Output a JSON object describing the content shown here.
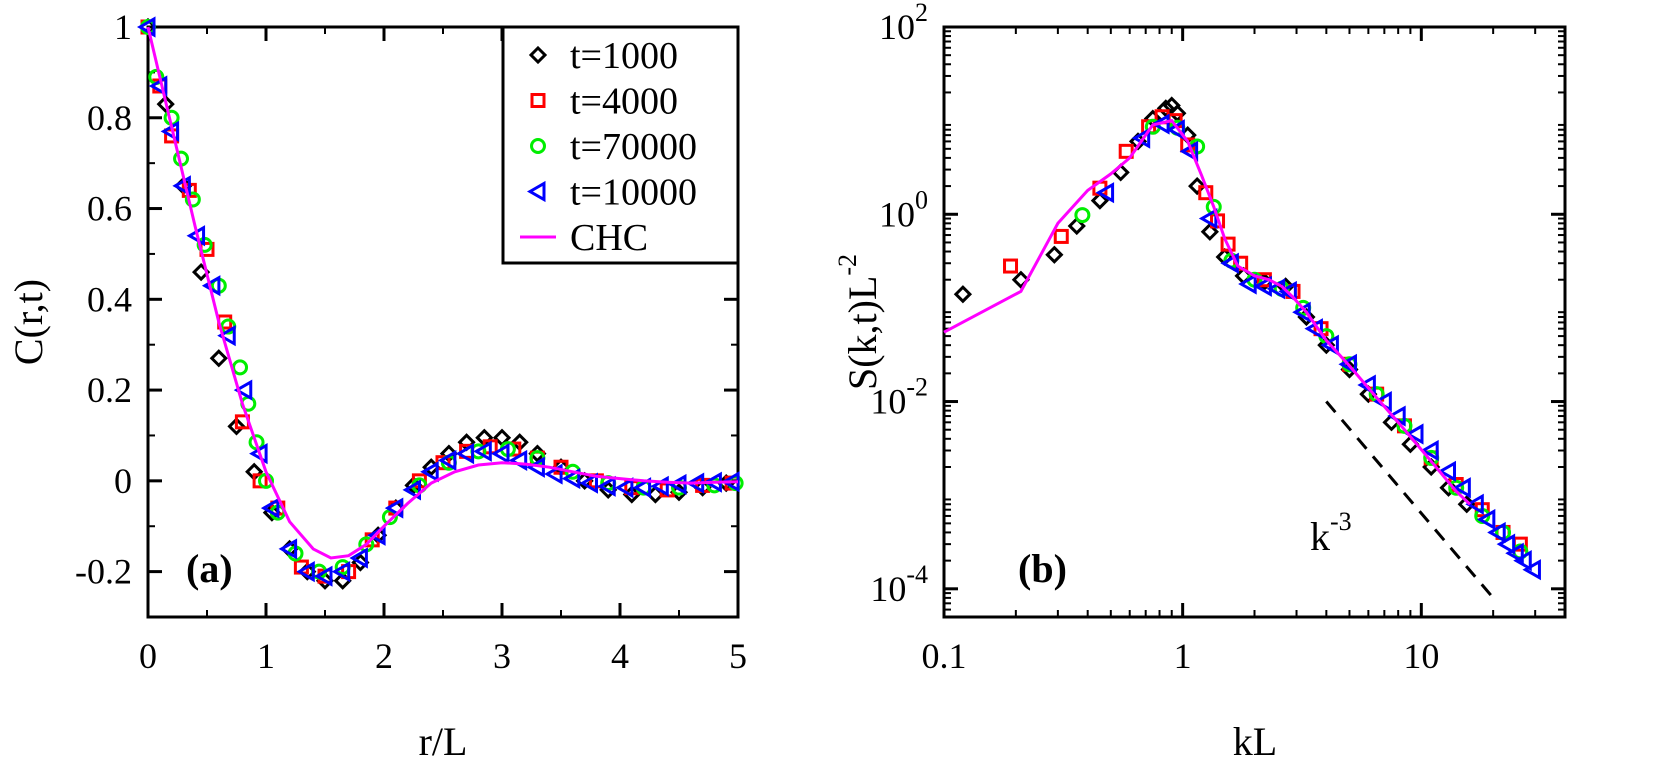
{
  "chart_data": [
    {
      "type": "scatter",
      "panel_label": "(a)",
      "xlabel": "r/L",
      "ylabel": "C(r,t)",
      "xlim": [
        0,
        5
      ],
      "ylim": [
        -0.3,
        1
      ],
      "xscale": "linear",
      "yscale": "linear",
      "xticks": [
        0,
        1,
        2,
        3,
        4,
        5
      ],
      "xtick_labels": [
        "0",
        "1",
        "2",
        "3",
        "4",
        "5"
      ],
      "yticks": [
        -0.2,
        0,
        0.2,
        0.4,
        0.6,
        0.8,
        1
      ],
      "ytick_labels": [
        "-0.2",
        "0",
        "0.2",
        "0.4",
        "0.6",
        "0.8",
        "1"
      ],
      "legend_position": "top-right",
      "series": [
        {
          "name": "t=1000",
          "marker": "diamond",
          "color": "#000000",
          "x": [
            0,
            0.15,
            0.3,
            0.45,
            0.6,
            0.75,
            0.9,
            1.05,
            1.2,
            1.35,
            1.5,
            1.65,
            1.8,
            1.95,
            2.1,
            2.25,
            2.4,
            2.55,
            2.7,
            2.85,
            3.0,
            3.15,
            3.3,
            3.5,
            3.7,
            3.9,
            4.1,
            4.3,
            4.5,
            4.7,
            4.9
          ],
          "y": [
            1.0,
            0.83,
            0.65,
            0.46,
            0.27,
            0.12,
            0.02,
            -0.07,
            -0.15,
            -0.2,
            -0.22,
            -0.22,
            -0.18,
            -0.12,
            -0.06,
            -0.01,
            0.03,
            0.06,
            0.085,
            0.095,
            0.095,
            0.085,
            0.06,
            0.03,
            0.0,
            -0.02,
            -0.03,
            -0.03,
            -0.025,
            -0.015,
            -0.005
          ]
        },
        {
          "name": "t=4000",
          "marker": "square",
          "color": "#ff0000",
          "x": [
            0,
            0.1,
            0.2,
            0.35,
            0.5,
            0.65,
            0.8,
            0.95,
            1.1,
            1.3,
            1.5,
            1.7,
            1.9,
            2.1,
            2.3,
            2.5,
            2.7,
            2.9,
            3.1,
            3.3,
            3.5,
            3.8,
            4.1,
            4.4,
            4.7,
            4.95
          ],
          "y": [
            1.0,
            0.87,
            0.76,
            0.64,
            0.51,
            0.35,
            0.13,
            0.0,
            -0.06,
            -0.19,
            -0.21,
            -0.2,
            -0.13,
            -0.06,
            0.0,
            0.04,
            0.065,
            0.075,
            0.07,
            0.05,
            0.03,
            0.0,
            -0.015,
            -0.02,
            -0.01,
            -0.005
          ]
        },
        {
          "name": "t=70000",
          "marker": "circle",
          "color": "#00ee00",
          "x": [
            0,
            0.07,
            0.2,
            0.28,
            0.38,
            0.48,
            0.6,
            0.68,
            0.78,
            0.85,
            0.92,
            1.0,
            1.1,
            1.25,
            1.45,
            1.65,
            1.85,
            2.05,
            2.3,
            2.55,
            2.8,
            3.05,
            3.3,
            3.6,
            3.9,
            4.2,
            4.5,
            4.8,
            4.98
          ],
          "y": [
            1.0,
            0.89,
            0.8,
            0.71,
            0.62,
            0.52,
            0.43,
            0.34,
            0.25,
            0.17,
            0.085,
            0.0,
            -0.07,
            -0.16,
            -0.2,
            -0.19,
            -0.14,
            -0.08,
            -0.01,
            0.04,
            0.065,
            0.07,
            0.05,
            0.02,
            -0.005,
            -0.015,
            -0.015,
            -0.01,
            -0.005
          ]
        },
        {
          "name": "t=10000",
          "marker": "triangle-left",
          "color": "#0000ff",
          "x": [
            0,
            0.1,
            0.2,
            0.3,
            0.42,
            0.55,
            0.68,
            0.82,
            0.95,
            1.05,
            1.2,
            1.35,
            1.5,
            1.65,
            1.8,
            1.95,
            2.1,
            2.25,
            2.4,
            2.55,
            2.7,
            2.85,
            3.0,
            3.15,
            3.3,
            3.45,
            3.6,
            3.75,
            3.9,
            4.05,
            4.2,
            4.35,
            4.5,
            4.65,
            4.8,
            4.95
          ],
          "y": [
            1.0,
            0.87,
            0.77,
            0.65,
            0.54,
            0.43,
            0.32,
            0.2,
            0.06,
            -0.06,
            -0.15,
            -0.2,
            -0.21,
            -0.2,
            -0.17,
            -0.12,
            -0.06,
            -0.02,
            0.02,
            0.045,
            0.06,
            0.065,
            0.06,
            0.045,
            0.03,
            0.015,
            0.005,
            -0.005,
            -0.012,
            -0.015,
            -0.015,
            -0.012,
            -0.008,
            -0.005,
            -0.003,
            -0.002
          ]
        },
        {
          "name": "CHC",
          "marker": "line",
          "color": "#ff00ff",
          "x": [
            0,
            0.2,
            0.4,
            0.6,
            0.8,
            1.0,
            1.2,
            1.4,
            1.55,
            1.7,
            1.85,
            2.0,
            2.2,
            2.4,
            2.6,
            2.8,
            3.0,
            3.2,
            3.4,
            3.6,
            3.8,
            4.0,
            4.2,
            4.4,
            4.6,
            4.8,
            5.0
          ],
          "y": [
            1.0,
            0.78,
            0.56,
            0.35,
            0.17,
            0.02,
            -0.09,
            -0.15,
            -0.17,
            -0.165,
            -0.14,
            -0.1,
            -0.05,
            -0.005,
            0.02,
            0.035,
            0.04,
            0.037,
            0.03,
            0.02,
            0.01,
            0.005,
            0.0,
            -0.003,
            -0.005,
            -0.003,
            -0.002
          ]
        }
      ]
    },
    {
      "type": "scatter",
      "panel_label": "(b)",
      "xlabel": "kL",
      "ylabel": {
        "base": "S(k,t)L",
        "exp": "-2"
      },
      "xlim": [
        0.1,
        40
      ],
      "ylim": [
        5e-05,
        100
      ],
      "xscale": "log",
      "yscale": "log",
      "xticks": [
        0.1,
        1,
        10
      ],
      "xtick_labels": [
        "0.1",
        "1",
        "10"
      ],
      "yticks": [
        0.0001,
        0.01,
        1,
        100
      ],
      "ytick_labels": [
        {
          "base": "10",
          "exp": "-4"
        },
        {
          "base": "10",
          "exp": "-2"
        },
        {
          "base": "10",
          "exp": "0"
        },
        {
          "base": "10",
          "exp": "2"
        }
      ],
      "annotation": {
        "text_base": "k",
        "text_exp": "-3",
        "at": [
          5,
          0.00045
        ]
      },
      "guide_line": {
        "style": "dashed",
        "color": "#000000",
        "x": [
          4,
          20
        ],
        "y": [
          0.01,
          8e-05
        ]
      },
      "series": [
        {
          "name": "t=1000",
          "marker": "diamond",
          "color": "#000000",
          "x": [
            0.12,
            0.21,
            0.29,
            0.36,
            0.45,
            0.55,
            0.65,
            0.75,
            0.85,
            0.9,
            0.95,
            1.05,
            1.15,
            1.3,
            1.5,
            1.8,
            2.2,
            2.7,
            3.3,
            4.0,
            5.0,
            6.0,
            7.5,
            9.0,
            11,
            13,
            15.5
          ],
          "y": [
            0.14,
            0.2,
            0.37,
            0.75,
            1.4,
            2.8,
            6.0,
            10.5,
            13.5,
            14.5,
            12,
            7.0,
            2.0,
            0.65,
            0.35,
            0.22,
            0.19,
            0.17,
            0.08,
            0.04,
            0.022,
            0.012,
            0.006,
            0.0035,
            0.002,
            0.0012,
            0.0008
          ]
        },
        {
          "name": "t=4000",
          "marker": "square",
          "color": "#ff0000",
          "x": [
            0.19,
            0.31,
            0.45,
            0.58,
            0.72,
            0.82,
            0.93,
            1.05,
            1.25,
            1.4,
            1.55,
            1.75,
            2.2,
            2.9,
            3.8,
            5.0,
            6.5,
            8.5,
            11,
            14,
            18,
            22,
            26
          ],
          "y": [
            0.28,
            0.58,
            1.9,
            4.7,
            8.6,
            11,
            10,
            5.5,
            1.7,
            0.85,
            0.48,
            0.3,
            0.2,
            0.15,
            0.06,
            0.025,
            0.012,
            0.0055,
            0.0025,
            0.0013,
            0.0007,
            0.0004,
            0.0003
          ]
        },
        {
          "name": "t=70000",
          "marker": "circle",
          "color": "#00ee00",
          "x": [
            0.38,
            0.75,
            0.95,
            1.15,
            1.35,
            1.6,
            2.0,
            2.6,
            3.2,
            4.0,
            5.0,
            6.5,
            8.5,
            11,
            14,
            18,
            22,
            26
          ],
          "y": [
            0.98,
            8.6,
            8.4,
            5.3,
            1.2,
            0.32,
            0.2,
            0.16,
            0.1,
            0.05,
            0.025,
            0.012,
            0.0055,
            0.0025,
            0.0012,
            0.0006,
            0.0004,
            0.00025
          ]
        },
        {
          "name": "t=10000",
          "marker": "triangle-left",
          "color": "#0000ff",
          "x": [
            0.48,
            0.68,
            0.82,
            0.95,
            1.08,
            1.3,
            1.6,
            1.9,
            2.2,
            2.5,
            2.8,
            3.2,
            3.6,
            4.2,
            5.0,
            6.0,
            7.0,
            8.0,
            9.5,
            11,
            13,
            15,
            17,
            19,
            21,
            23,
            25,
            27,
            29.5
          ],
          "y": [
            1.7,
            6.5,
            9.2,
            8.0,
            4.7,
            0.9,
            0.3,
            0.18,
            0.17,
            0.16,
            0.15,
            0.09,
            0.06,
            0.04,
            0.025,
            0.015,
            0.01,
            0.007,
            0.0045,
            0.003,
            0.0018,
            0.0012,
            0.0008,
            0.00055,
            0.0004,
            0.0003,
            0.00024,
            0.0002,
            0.00016
          ]
        },
        {
          "name": "CHC",
          "marker": "line",
          "color": "#ff00ff",
          "x": [
            0.1,
            0.21,
            0.3,
            0.4,
            0.5,
            0.6,
            0.75,
            0.9,
            1.05,
            1.2,
            1.35,
            1.5,
            1.7,
            2.0,
            2.3,
            2.6,
            2.9,
            3.3,
            4.0,
            5.0,
            6.5,
            8.5,
            11,
            14,
            16
          ],
          "y": [
            0.055,
            0.15,
            0.8,
            1.8,
            2.7,
            4.0,
            9.0,
            10,
            6.0,
            2.6,
            1.2,
            0.55,
            0.28,
            0.22,
            0.2,
            0.17,
            0.13,
            0.09,
            0.045,
            0.024,
            0.011,
            0.005,
            0.0023,
            0.0011,
            0.0008
          ]
        }
      ]
    }
  ]
}
